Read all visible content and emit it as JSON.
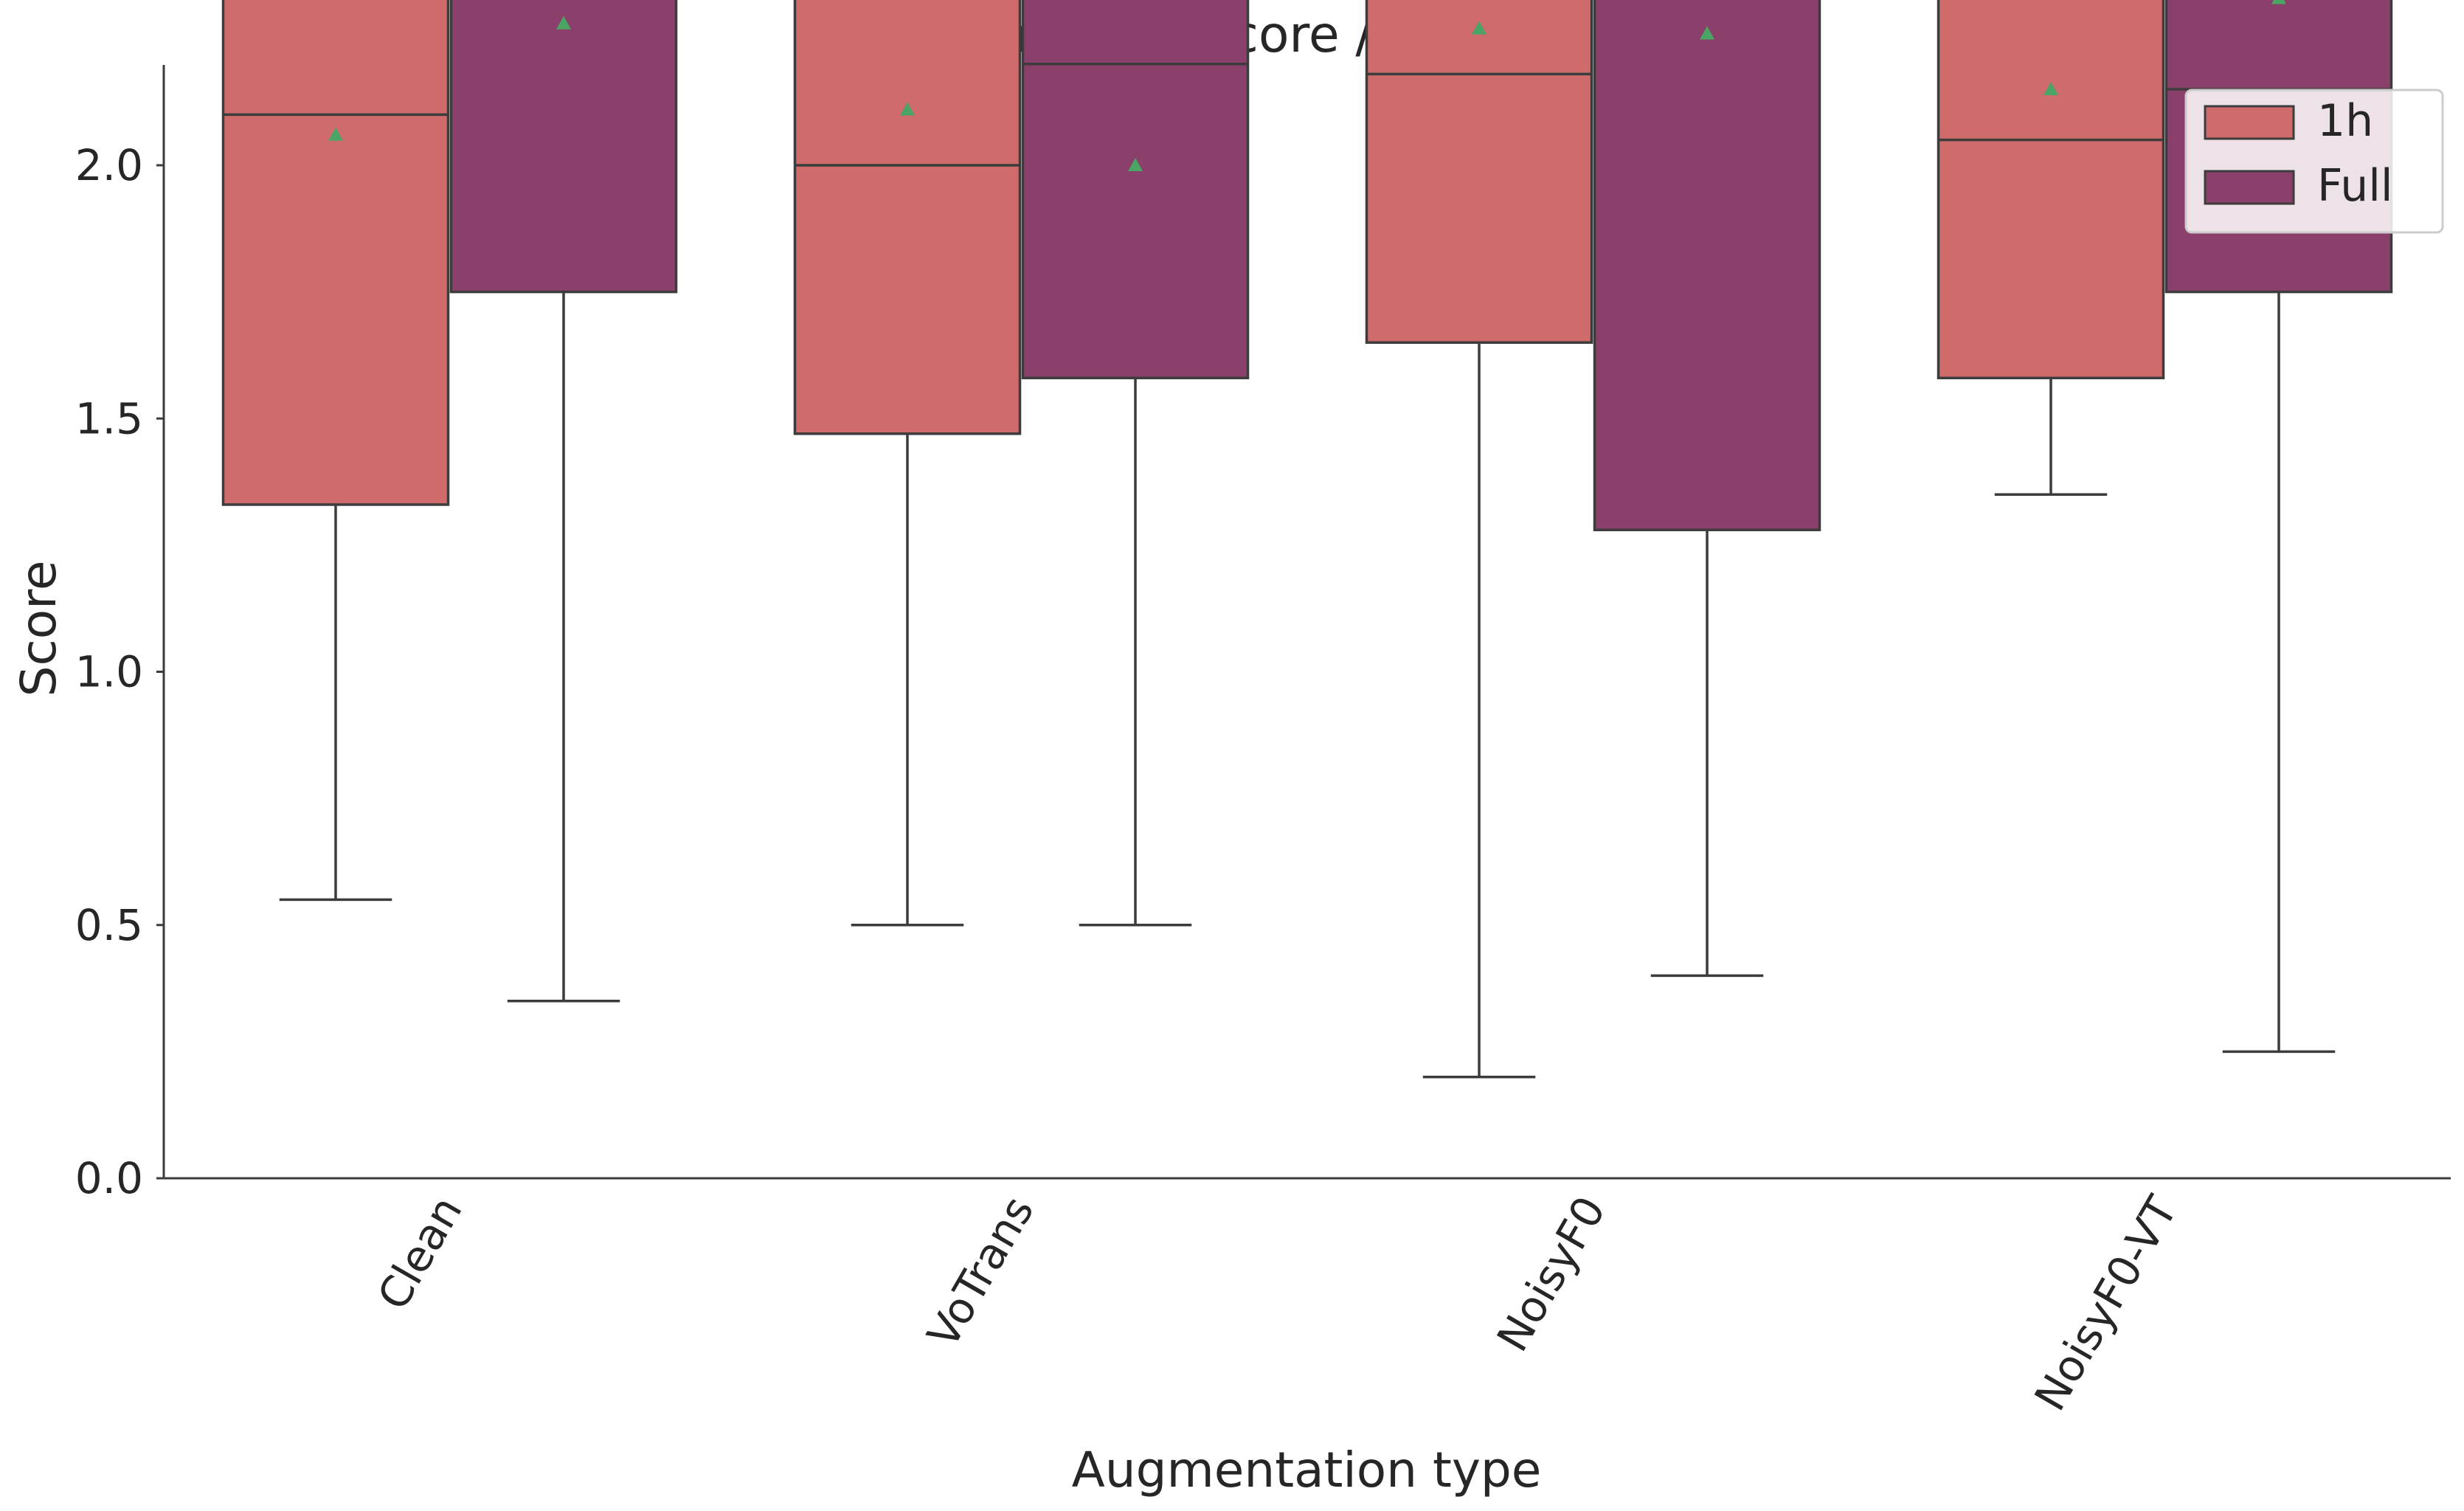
{
  "chart_data": {
    "type": "box",
    "title": "Similarity score / male voice",
    "xlabel": "Augmentation type",
    "ylabel": "Score",
    "ylim": [
      0,
      4.4
    ],
    "yticks": [
      "0.0",
      "0.5",
      "1.0",
      "1.5",
      "2.0",
      "2.5",
      "3.0",
      "3.5",
      "4.0"
    ],
    "categories": [
      "Clean",
      "VoTrans",
      "NoisyF0",
      "NoisyF0-VT"
    ],
    "legend": {
      "position": "top-right"
    },
    "mean_marker_color": "#4aa564",
    "line_color": "#3c3c3c",
    "grid": false,
    "series": [
      {
        "name": "1h",
        "color": "#cf6b6a",
        "boxes": [
          {
            "whislo": 0.55,
            "q1": 1.33,
            "med": 2.1,
            "q3": 2.5,
            "whishi": 4.2,
            "mean": 2.06,
            "fliers": []
          },
          {
            "whislo": 0.5,
            "q1": 1.47,
            "med": 2.0,
            "q3": 2.4,
            "whishi": 3.55,
            "mean": 2.11,
            "fliers": [
              4.15
            ]
          },
          {
            "whislo": 0.2,
            "q1": 1.65,
            "med": 2.18,
            "q3": 3.04,
            "whishi": 4.2,
            "mean": 2.27,
            "fliers": []
          },
          {
            "whislo": 1.35,
            "q1": 1.58,
            "med": 2.05,
            "q3": 2.5,
            "whishi": 3.55,
            "mean": 2.15,
            "fliers": [
              3.95
            ]
          }
        ]
      },
      {
        "name": "Full",
        "color": "#8b406b",
        "boxes": [
          {
            "whislo": 0.35,
            "q1": 1.75,
            "med": 2.5,
            "q3": 2.83,
            "whishi": 3.6,
            "mean": 2.28,
            "fliers": []
          },
          {
            "whislo": 0.5,
            "q1": 1.58,
            "med": 2.2,
            "q3": 2.53,
            "whishi": 3.3,
            "mean": 2.0,
            "fliers": []
          },
          {
            "whislo": 0.4,
            "q1": 1.28,
            "med": 2.45,
            "q3": 3.08,
            "whishi": 3.95,
            "mean": 2.26,
            "fliers": []
          },
          {
            "whislo": 0.25,
            "q1": 1.75,
            "med": 2.15,
            "q3": 3.08,
            "whishi": 4.15,
            "mean": 2.33,
            "fliers": []
          }
        ]
      }
    ]
  }
}
